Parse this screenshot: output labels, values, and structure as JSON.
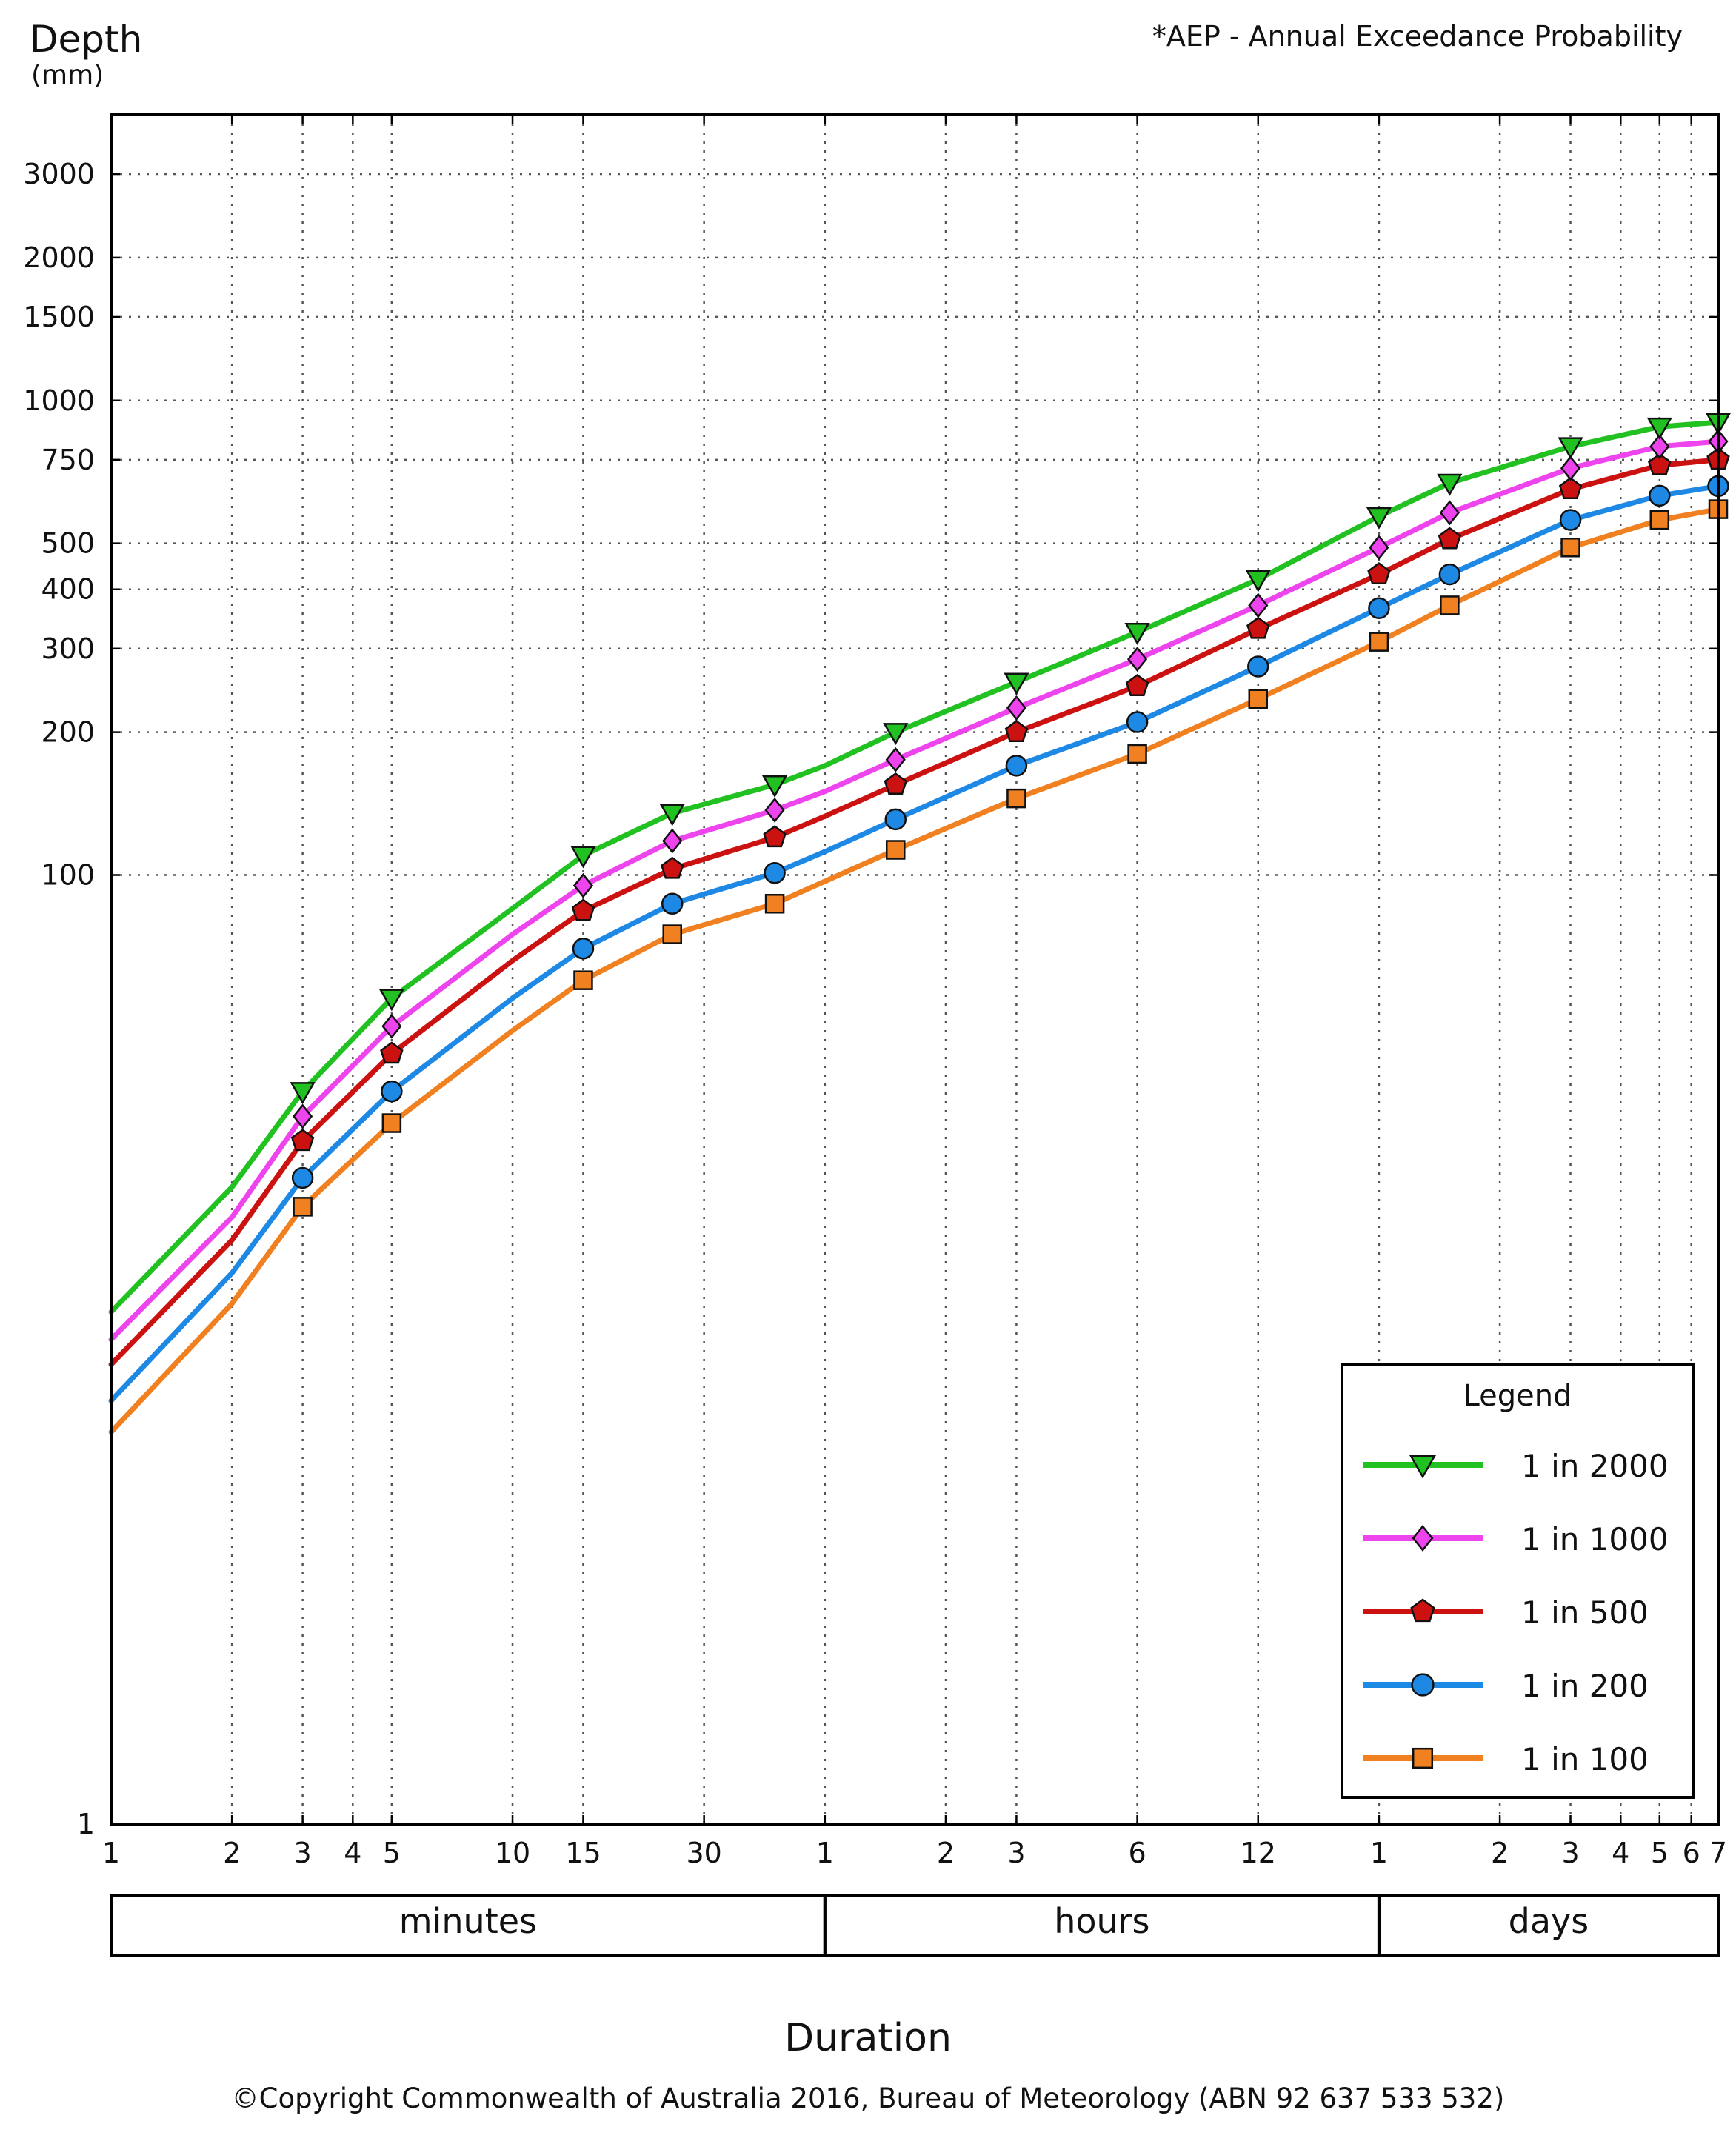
{
  "header": {
    "title": "Depth",
    "unit": "(mm)",
    "note": "*AEP - Annual Exceedance Probability"
  },
  "footer": {
    "xlabel": "Duration",
    "copyright": "©Copyright Commonwealth of Australia 2016, Bureau of Meteorology (ABN 92 637 533 532)"
  },
  "chart_data": {
    "type": "line",
    "title": "",
    "xlabel": "Duration",
    "ylabel": "Depth (mm)",
    "x_scale": "log",
    "y_scale": "log",
    "grid": true,
    "legend_title": "Legend",
    "legend_position": "bottom-right",
    "x_ticks": [
      {
        "minutes": 1,
        "label": "1"
      },
      {
        "minutes": 2,
        "label": "2"
      },
      {
        "minutes": 3,
        "label": "3"
      },
      {
        "minutes": 4,
        "label": "4"
      },
      {
        "minutes": 5,
        "label": "5"
      },
      {
        "minutes": 10,
        "label": "10"
      },
      {
        "minutes": 15,
        "label": "15"
      },
      {
        "minutes": 30,
        "label": "30"
      },
      {
        "minutes": 60,
        "label": "1"
      },
      {
        "minutes": 120,
        "label": "2"
      },
      {
        "minutes": 180,
        "label": "3"
      },
      {
        "minutes": 360,
        "label": "6"
      },
      {
        "minutes": 720,
        "label": "12"
      },
      {
        "minutes": 1440,
        "label": "1"
      },
      {
        "minutes": 2880,
        "label": "2"
      },
      {
        "minutes": 4320,
        "label": "3"
      },
      {
        "minutes": 5760,
        "label": "4"
      },
      {
        "minutes": 7200,
        "label": "5"
      },
      {
        "minutes": 8640,
        "label": "6"
      },
      {
        "minutes": 10080,
        "label": "7"
      }
    ],
    "y_ticks": [
      1,
      100,
      200,
      300,
      400,
      500,
      750,
      1000,
      1500,
      2000,
      3000
    ],
    "ylim": [
      1,
      4000
    ],
    "xlim_minutes": [
      1,
      10080
    ],
    "duration_bands": [
      {
        "label": "minutes",
        "from_minutes": 1,
        "to_minutes": 60
      },
      {
        "label": "hours",
        "from_minutes": 60,
        "to_minutes": 1440
      },
      {
        "label": "days",
        "from_minutes": 1440,
        "to_minutes": 10080
      }
    ],
    "x_minutes": [
      1,
      2,
      3,
      5,
      10,
      15,
      25,
      45,
      60,
      90,
      180,
      360,
      720,
      1440,
      2160,
      4320,
      7200,
      10080
    ],
    "marker_indices": [
      2,
      3,
      5,
      6,
      7,
      9,
      10,
      11,
      12,
      13,
      14,
      15,
      16,
      17
    ],
    "series": [
      {
        "name": "1 in 2000",
        "color": "#22c122",
        "marker": "triangle-down",
        "values": [
          12.0,
          22.0,
          35.0,
          55.0,
          85.0,
          110.0,
          135.0,
          155.0,
          170.0,
          200.0,
          255.0,
          325.0,
          420.0,
          570.0,
          670.0,
          800.0,
          880.0,
          900.0
        ]
      },
      {
        "name": "1 in 1000",
        "color": "#ee44ee",
        "marker": "diamond",
        "values": [
          10.5,
          19.0,
          31.0,
          48.0,
          75.0,
          95.0,
          118.0,
          137.0,
          150.0,
          175.0,
          225.0,
          285.0,
          370.0,
          490.0,
          580.0,
          720.0,
          800.0,
          820.0
        ]
      },
      {
        "name": "1 in 500",
        "color": "#cc1111",
        "marker": "pentagon",
        "values": [
          9.3,
          17.0,
          27.5,
          42.0,
          66.0,
          84.0,
          103.0,
          120.0,
          133.0,
          155.0,
          200.0,
          250.0,
          330.0,
          430.0,
          510.0,
          650.0,
          730.0,
          750.0
        ]
      },
      {
        "name": "1 in 200",
        "color": "#1e88e5",
        "marker": "circle",
        "values": [
          7.8,
          14.5,
          23.0,
          35.0,
          55.0,
          70.0,
          87.0,
          101.0,
          112.0,
          131.0,
          170.0,
          210.0,
          275.0,
          365.0,
          430.0,
          560.0,
          630.0,
          660.0
        ]
      },
      {
        "name": "1 in 100",
        "color": "#f08020",
        "marker": "square",
        "values": [
          6.7,
          12.5,
          20.0,
          30.0,
          47.0,
          60.0,
          75.0,
          87.0,
          97.0,
          113.0,
          145.0,
          180.0,
          235.0,
          310.0,
          370.0,
          490.0,
          560.0,
          590.0
        ]
      }
    ]
  }
}
